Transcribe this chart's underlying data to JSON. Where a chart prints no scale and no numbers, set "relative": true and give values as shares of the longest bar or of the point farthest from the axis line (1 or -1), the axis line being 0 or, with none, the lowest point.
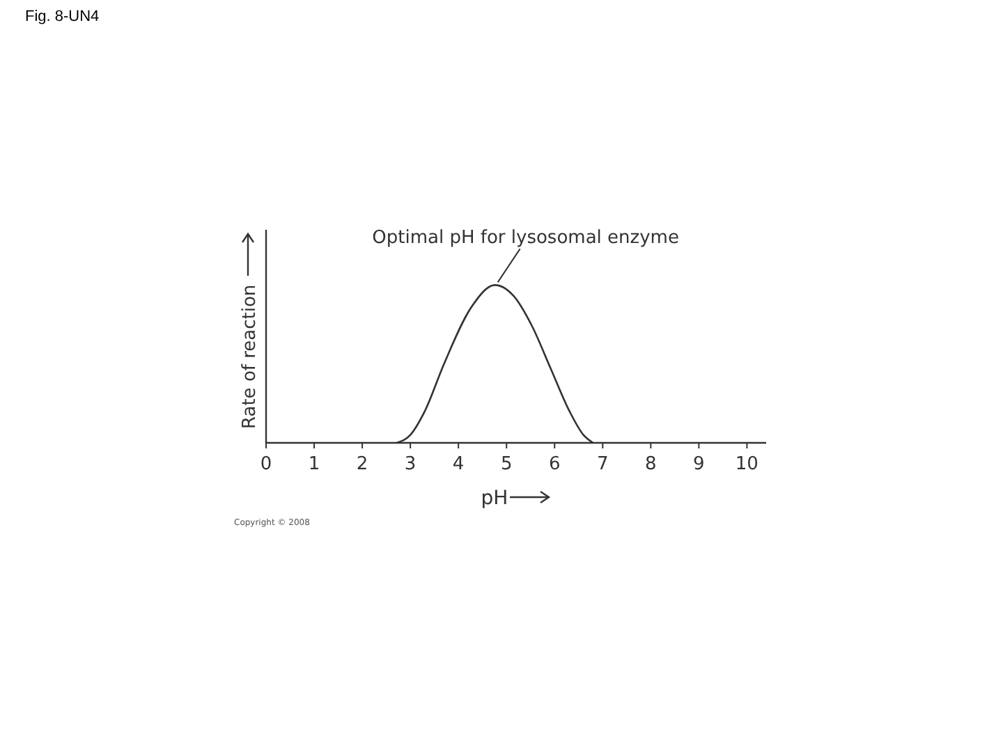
{
  "chart_data": {
    "type": "line",
    "title": "Fig. 8-UN4",
    "xlabel": "pH",
    "ylabel": "Rate of reaction",
    "relative": true,
    "xlim": [
      0,
      10.4
    ],
    "xticks": [
      0,
      1,
      2,
      3,
      4,
      5,
      6,
      7,
      8,
      9,
      10
    ],
    "series": [
      {
        "color": "#333333",
        "x": [
          2.72,
          3.0,
          3.3,
          3.7,
          4.27,
          4.76,
          5.15,
          5.53,
          5.92,
          6.31,
          6.6,
          6.8
        ],
        "values": [
          0,
          0.05,
          0.2,
          0.5,
          0.86,
          1,
          0.93,
          0.74,
          0.47,
          0.2,
          0.05,
          0
        ]
      }
    ],
    "annotations": [
      {
        "text": "Optimal pH for lysosomal enzyme",
        "x": 4.76,
        "y": 1
      },
      "Copyright © 2008"
    ],
    "grid": false,
    "marker": "none",
    "line_style": "solid"
  }
}
